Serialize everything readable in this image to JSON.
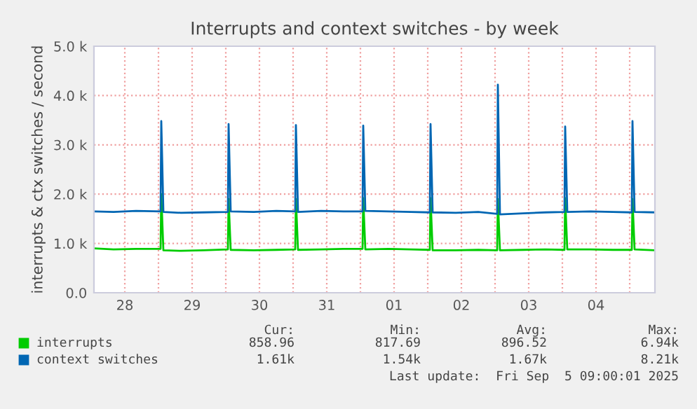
{
  "chart_data": {
    "type": "line",
    "title": "Interrupts and context switches - by week",
    "ylabel": "interrupts & ctx switches / second",
    "series": [
      {
        "name": "interrupts",
        "color": "#00cc00",
        "x": [
          "2025-08-28T01:00",
          "2025-08-28T08:00",
          "2025-08-28T16:00",
          "2025-08-29T00:45",
          "2025-08-29T01:00",
          "2025-08-29T01:45",
          "2025-08-29T08:00",
          "2025-08-29T16:00",
          "2025-08-30T00:45",
          "2025-08-30T01:00",
          "2025-08-30T01:45",
          "2025-08-30T10:00",
          "2025-08-30T18:00",
          "2025-08-31T00:45",
          "2025-08-31T01:00",
          "2025-08-31T01:45",
          "2025-08-31T10:00",
          "2025-08-31T18:00",
          "2025-09-01T00:45",
          "2025-09-01T01:00",
          "2025-09-01T01:45",
          "2025-09-01T10:00",
          "2025-09-01T18:00",
          "2025-09-02T00:45",
          "2025-09-02T01:00",
          "2025-09-02T01:45",
          "2025-09-02T10:00",
          "2025-09-02T18:00",
          "2025-09-03T00:45",
          "2025-09-03T01:00",
          "2025-09-03T01:45",
          "2025-09-03T10:00",
          "2025-09-03T18:00",
          "2025-09-04T00:45",
          "2025-09-04T01:00",
          "2025-09-04T01:45",
          "2025-09-04T10:00",
          "2025-09-04T18:00",
          "2025-09-05T00:45",
          "2025-09-05T01:00",
          "2025-09-05T01:45",
          "2025-09-05T09:00"
        ],
        "values": [
          900,
          880,
          890,
          890,
          2000,
          860,
          850,
          860,
          880,
          1900,
          870,
          860,
          870,
          880,
          1900,
          870,
          880,
          890,
          890,
          1920,
          880,
          890,
          880,
          870,
          1920,
          860,
          860,
          870,
          860,
          1900,
          860,
          870,
          880,
          870,
          1920,
          880,
          880,
          870,
          870,
          1900,
          880,
          860
        ]
      },
      {
        "name": "context switches",
        "color": "#0066b3",
        "x": [
          "2025-08-28T01:00",
          "2025-08-28T08:00",
          "2025-08-28T16:00",
          "2025-08-29T00:45",
          "2025-08-29T01:00",
          "2025-08-29T01:45",
          "2025-08-29T08:00",
          "2025-08-29T16:00",
          "2025-08-30T00:45",
          "2025-08-30T01:00",
          "2025-08-30T01:45",
          "2025-08-30T10:00",
          "2025-08-30T18:00",
          "2025-08-31T00:45",
          "2025-08-31T01:00",
          "2025-08-31T01:45",
          "2025-08-31T10:00",
          "2025-08-31T18:00",
          "2025-09-01T00:45",
          "2025-09-01T01:00",
          "2025-09-01T01:45",
          "2025-09-01T10:00",
          "2025-09-01T18:00",
          "2025-09-02T00:45",
          "2025-09-02T01:00",
          "2025-09-02T01:45",
          "2025-09-02T10:00",
          "2025-09-02T18:00",
          "2025-09-03T00:45",
          "2025-09-03T01:00",
          "2025-09-03T01:45",
          "2025-09-03T10:00",
          "2025-09-03T18:00",
          "2025-09-04T00:45",
          "2025-09-04T01:00",
          "2025-09-04T01:45",
          "2025-09-04T10:00",
          "2025-09-04T18:00",
          "2025-09-05T00:45",
          "2025-09-05T01:00",
          "2025-09-05T01:45",
          "2025-09-05T09:00"
        ],
        "values": [
          1650,
          1640,
          1660,
          1650,
          3480,
          1640,
          1620,
          1630,
          1640,
          3420,
          1650,
          1640,
          1660,
          1650,
          3400,
          1640,
          1660,
          1650,
          1650,
          3390,
          1660,
          1650,
          1640,
          1630,
          3420,
          1630,
          1620,
          1640,
          1600,
          4220,
          1590,
          1610,
          1630,
          1640,
          3370,
          1640,
          1650,
          1640,
          1630,
          3480,
          1640,
          1630
        ]
      }
    ],
    "xlim": [
      "2025-08-28T01:00",
      "2025-09-05T09:00"
    ],
    "xticks": [
      {
        "value": "2025-08-28T12:00",
        "label": "28"
      },
      {
        "value": "2025-08-29T00:00",
        "label": null
      },
      {
        "value": "2025-08-29T12:00",
        "label": "29"
      },
      {
        "value": "2025-08-30T00:00",
        "label": null
      },
      {
        "value": "2025-08-30T12:00",
        "label": "30"
      },
      {
        "value": "2025-08-31T00:00",
        "label": null
      },
      {
        "value": "2025-08-31T12:00",
        "label": "31"
      },
      {
        "value": "2025-09-01T00:00",
        "label": null
      },
      {
        "value": "2025-09-01T12:00",
        "label": "01"
      },
      {
        "value": "2025-09-02T00:00",
        "label": null
      },
      {
        "value": "2025-09-02T12:00",
        "label": "02"
      },
      {
        "value": "2025-09-03T00:00",
        "label": null
      },
      {
        "value": "2025-09-03T12:00",
        "label": "03"
      },
      {
        "value": "2025-09-04T00:00",
        "label": null
      },
      {
        "value": "2025-09-04T12:00",
        "label": "04"
      },
      {
        "value": "2025-09-05T00:00",
        "label": null
      }
    ],
    "ylim": [
      0,
      5000
    ],
    "yticks": [
      {
        "value": 0,
        "label": "0.0"
      },
      {
        "value": 1000,
        "label": "1.0 k"
      },
      {
        "value": 2000,
        "label": "2.0 k"
      },
      {
        "value": 3000,
        "label": "3.0 k"
      },
      {
        "value": 4000,
        "label": "4.0 k"
      },
      {
        "value": 5000,
        "label": "5.0 k"
      }
    ],
    "grid": true,
    "legend": "bottom left",
    "marker": "none",
    "line_style": "solid",
    "annotations": [
      "Cur:",
      "Min:",
      "Avg:",
      "Max:",
      "858.96",
      "817.69",
      "896.52",
      "6.94k",
      "1.61k",
      "1.54k",
      "1.67k",
      "8.21k",
      "Last update:  Fri Sep  5 09:00:01 2025"
    ]
  }
}
